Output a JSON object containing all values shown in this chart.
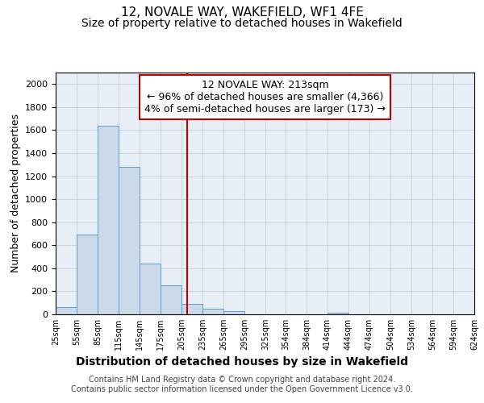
{
  "title": "12, NOVALE WAY, WAKEFIELD, WF1 4FE",
  "subtitle": "Size of property relative to detached houses in Wakefield",
  "xlabel": "Distribution of detached houses by size in Wakefield",
  "ylabel": "Number of detached properties",
  "bin_edges": [
    25,
    55,
    85,
    115,
    145,
    175,
    205,
    235,
    265,
    295,
    325,
    354,
    384,
    414,
    444,
    474,
    504,
    534,
    564,
    594,
    624
  ],
  "bar_heights": [
    65,
    690,
    1635,
    1280,
    440,
    250,
    90,
    50,
    25,
    0,
    0,
    0,
    0,
    15,
    0,
    0,
    0,
    0,
    0,
    0
  ],
  "bar_facecolor": "#ccd9e8",
  "bar_edgecolor": "#5b9bd5",
  "vline_x": 213,
  "vline_color": "#c00000",
  "annotation_text": "12 NOVALE WAY: 213sqm\n← 96% of detached houses are smaller (4,366)\n4% of semi-detached houses are larger (173) →",
  "annotation_box_edgecolor": "#c00000",
  "annotation_box_facecolor": "#ffffff",
  "ylim": [
    0,
    2100
  ],
  "yticks": [
    0,
    200,
    400,
    600,
    800,
    1000,
    1200,
    1400,
    1600,
    1800,
    2000
  ],
  "xtick_labels": [
    "25sqm",
    "55sqm",
    "85sqm",
    "115sqm",
    "145sqm",
    "175sqm",
    "205sqm",
    "235sqm",
    "265sqm",
    "295sqm",
    "325sqm",
    "354sqm",
    "384sqm",
    "414sqm",
    "444sqm",
    "474sqm",
    "504sqm",
    "534sqm",
    "564sqm",
    "594sqm",
    "624sqm"
  ],
  "footer_text": "Contains HM Land Registry data © Crown copyright and database right 2024.\nContains public sector information licensed under the Open Government Licence v3.0.",
  "background_color": "#ffffff",
  "plot_bg_color": "#e8eef5",
  "grid_color": "#b8c8d8",
  "title_fontsize": 11,
  "subtitle_fontsize": 10,
  "xlabel_fontsize": 10,
  "ylabel_fontsize": 9,
  "tick_fontsize": 8,
  "annotation_fontsize": 9,
  "footer_fontsize": 7
}
